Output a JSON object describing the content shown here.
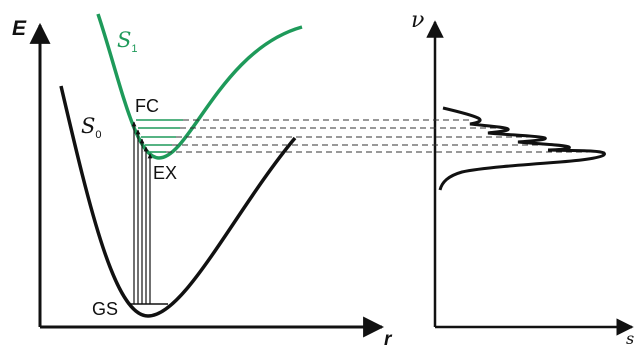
{
  "colors": {
    "ground_state": "#111111",
    "excited_state": "#1e9a5a",
    "guide_lines": "#333333"
  },
  "labels": {
    "energy_axis": "E",
    "coordinate_axis": "r",
    "freq_axis": "ν",
    "freq_axis_end": "s",
    "excited_curve": {
      "main": "S",
      "sub": "1"
    },
    "ground_curve": {
      "main": "S",
      "sub": "0"
    },
    "franck_condon": "FC",
    "excited_relaxed": "EX",
    "ground_state": "GS"
  }
}
